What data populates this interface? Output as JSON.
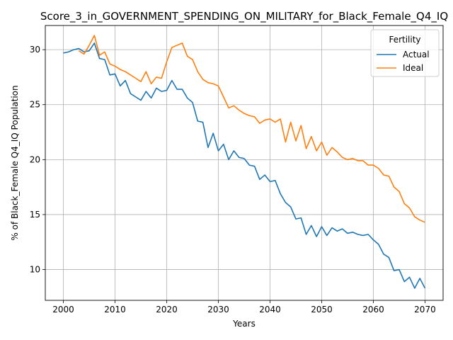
{
  "chart_data": {
    "type": "line",
    "title": "Score_3_in_GOVERNMENT_SPENDING_ON_MILITARY_for_Black_Female_Q4_IQ",
    "xlabel": "Years",
    "ylabel": "% of Black_Female Q4_IQ Population",
    "xlim": [
      1996.5,
      2073.5
    ],
    "ylim": [
      7.2,
      32.2
    ],
    "xticks": [
      2000,
      2010,
      2020,
      2030,
      2040,
      2050,
      2060,
      2070
    ],
    "yticks": [
      10,
      15,
      20,
      25,
      30
    ],
    "grid": true,
    "legend": {
      "title": "Fertility",
      "position": "top-right"
    },
    "series": [
      {
        "name": "Actual",
        "color": "#1f77b4",
        "x": [
          2000,
          2001,
          2002,
          2003,
          2004,
          2005,
          2006,
          2007,
          2008,
          2009,
          2010,
          2011,
          2012,
          2013,
          2014,
          2015,
          2016,
          2017,
          2018,
          2019,
          2020,
          2021,
          2022,
          2023,
          2024,
          2025,
          2026,
          2027,
          2028,
          2029,
          2030,
          2031,
          2032,
          2033,
          2034,
          2035,
          2036,
          2037,
          2038,
          2039,
          2040,
          2041,
          2042,
          2043,
          2044,
          2045,
          2046,
          2047,
          2048,
          2049,
          2050,
          2051,
          2052,
          2053,
          2054,
          2055,
          2056,
          2057,
          2058,
          2059,
          2060,
          2061,
          2062,
          2063,
          2064,
          2065,
          2066,
          2067,
          2068,
          2069,
          2070
        ],
        "values": [
          29.7,
          29.8,
          30.0,
          30.1,
          29.8,
          29.9,
          30.6,
          29.2,
          29.1,
          27.7,
          27.8,
          26.7,
          27.2,
          26.0,
          25.7,
          25.4,
          26.2,
          25.6,
          26.5,
          26.2,
          26.3,
          27.2,
          26.4,
          26.4,
          25.6,
          25.2,
          23.5,
          23.4,
          21.1,
          22.4,
          20.8,
          21.4,
          20.0,
          20.8,
          20.2,
          20.1,
          19.5,
          19.4,
          18.2,
          18.6,
          18.0,
          18.1,
          16.9,
          16.1,
          15.7,
          14.6,
          14.7,
          13.2,
          14.0,
          13.0,
          13.9,
          13.1,
          13.8,
          13.5,
          13.7,
          13.3,
          13.4,
          13.2,
          13.1,
          13.2,
          12.7,
          12.3,
          11.4,
          11.1,
          9.9,
          10.0,
          8.9,
          9.3,
          8.3,
          9.2,
          8.3
        ]
      },
      {
        "name": "Ideal",
        "color": "#ff7f0e",
        "x": [
          2003,
          2004,
          2005,
          2006,
          2007,
          2008,
          2009,
          2010,
          2011,
          2012,
          2013,
          2014,
          2015,
          2016,
          2017,
          2018,
          2019,
          2020,
          2021,
          2022,
          2023,
          2024,
          2025,
          2026,
          2027,
          2028,
          2029,
          2030,
          2031,
          2032,
          2033,
          2034,
          2035,
          2036,
          2037,
          2038,
          2039,
          2040,
          2041,
          2042,
          2043,
          2044,
          2045,
          2046,
          2047,
          2048,
          2049,
          2050,
          2051,
          2052,
          2053,
          2054,
          2055,
          2056,
          2057,
          2058,
          2059,
          2060,
          2061,
          2062,
          2063,
          2064,
          2065,
          2066,
          2067,
          2068,
          2069,
          2070
        ],
        "values": [
          29.9,
          29.6,
          30.4,
          31.3,
          29.5,
          29.8,
          28.7,
          28.5,
          28.2,
          28.0,
          27.7,
          27.4,
          27.1,
          28.0,
          26.9,
          27.5,
          27.4,
          28.9,
          30.2,
          30.4,
          30.6,
          29.4,
          29.1,
          28.0,
          27.3,
          27.0,
          26.9,
          26.7,
          25.7,
          24.7,
          24.9,
          24.5,
          24.2,
          24.0,
          23.9,
          23.3,
          23.6,
          23.7,
          23.4,
          23.7,
          21.6,
          23.4,
          21.7,
          23.1,
          21.0,
          22.1,
          20.8,
          21.6,
          20.4,
          21.1,
          20.7,
          20.2,
          20.0,
          20.1,
          19.9,
          19.9,
          19.5,
          19.5,
          19.2,
          18.6,
          18.5,
          17.5,
          17.1,
          16.0,
          15.6,
          14.8,
          14.5,
          14.3
        ]
      }
    ]
  }
}
